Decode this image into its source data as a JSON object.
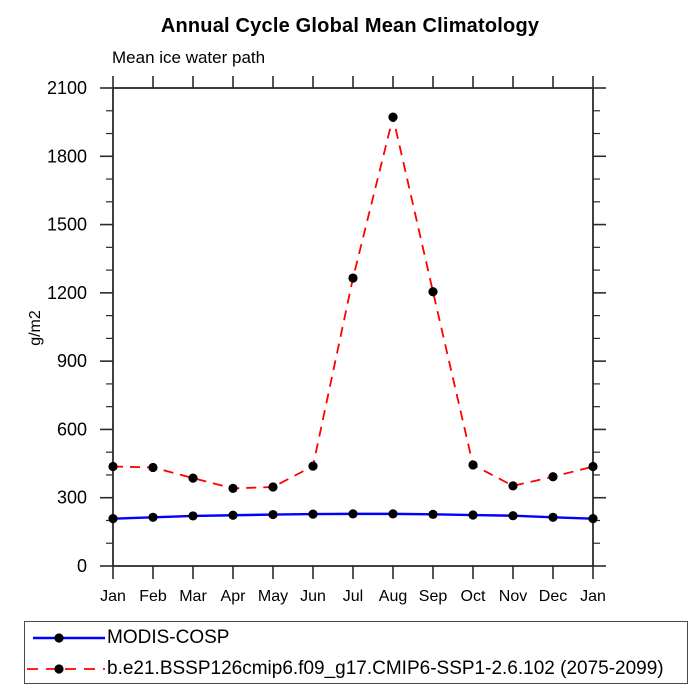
{
  "title": "Annual Cycle Global Mean Climatology",
  "chart_data": {
    "type": "line",
    "title": "Annual Cycle Global Mean Climatology",
    "subtitle": "Mean ice water path",
    "xlabel": "",
    "ylabel": "g/m2",
    "categories": [
      "Jan",
      "Feb",
      "Mar",
      "Apr",
      "May",
      "Jun",
      "Jul",
      "Aug",
      "Sep",
      "Oct",
      "Nov",
      "Dec",
      "Jan"
    ],
    "series": [
      {
        "name": "MODIS-COSP",
        "color": "#0000ff",
        "line_style": "solid",
        "marker": "filled-circle",
        "marker_color": "#000000",
        "values": [
          208,
          214,
          220,
          223,
          226,
          228,
          229,
          229,
          227,
          224,
          221,
          214,
          208
        ]
      },
      {
        "name": "b.e21.BSSP126cmip6.f09_g17.CMIP6-SSP1-2.6.102 (2075-2099)",
        "color": "#ff0000",
        "line_style": "dashed",
        "marker": "filled-circle",
        "marker_color": "#000000",
        "values": [
          437,
          433,
          386,
          341,
          347,
          439,
          1265,
          1972,
          1205,
          444,
          352,
          392,
          437
        ]
      }
    ],
    "ylim": [
      0,
      2100
    ],
    "yticks": [
      0,
      300,
      600,
      900,
      1200,
      1500,
      1800,
      2100
    ],
    "y_minor_tick_interval": 100,
    "grid": false,
    "legend_position": "bottom",
    "axis_color": "#2b2b2b"
  }
}
